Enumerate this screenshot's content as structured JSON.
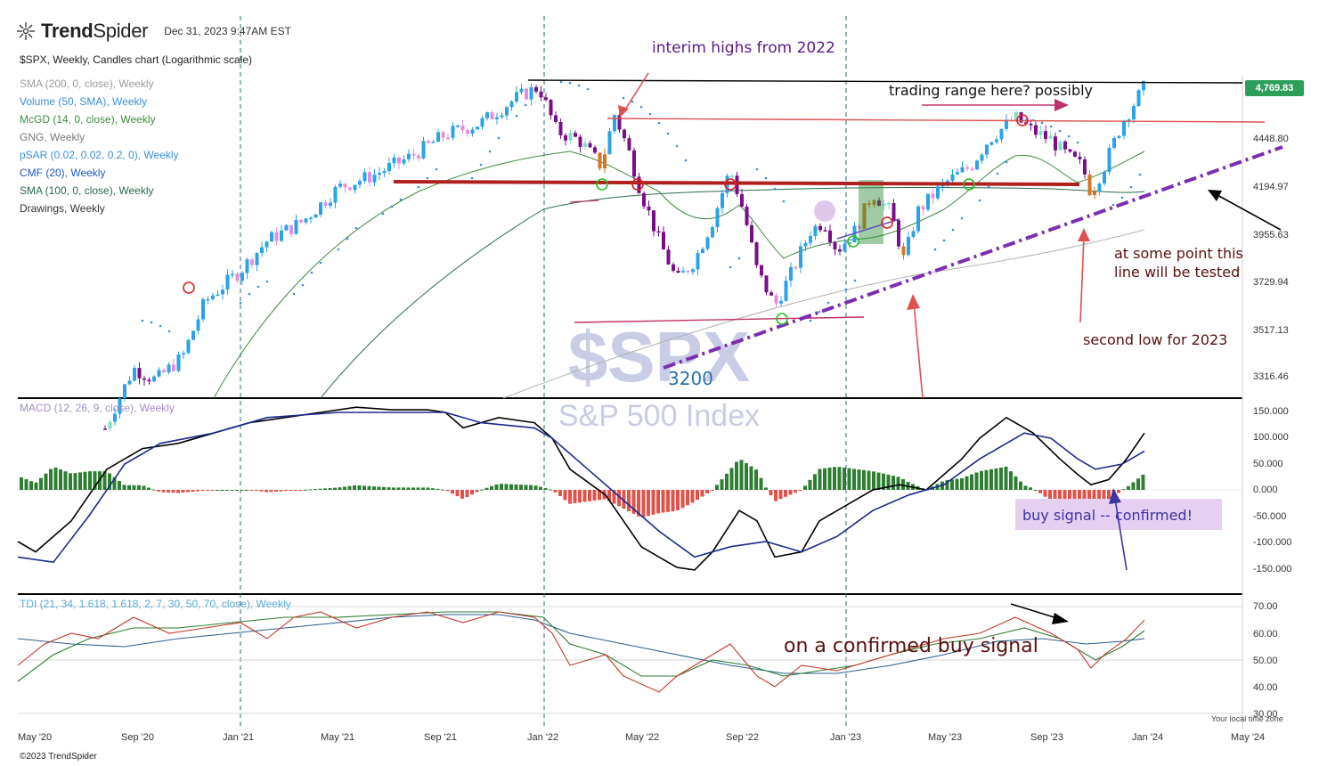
{
  "header": {
    "brand_bold": "Trend",
    "brand_light": "Spider",
    "datetime": "Dec 31, 2023 9:47AM EST",
    "symbol_line": "$SPX, Weekly, Candles chart (Logarithmic scale)"
  },
  "indicators": [
    {
      "label": "SMA (200, 0, close), Weekly",
      "color": "#9a9a9a"
    },
    {
      "label": "Volume (50, SMA), Weekly",
      "color": "#3b8fd6"
    },
    {
      "label": "McGD (14, 0, close), Weekly",
      "color": "#3f8a3f"
    },
    {
      "label": "GNG, Weekly",
      "color": "#7a7a7a"
    },
    {
      "label": "pSAR (0.02, 0.02, 0.2, 0), Weekly",
      "color": "#3b8fd6"
    },
    {
      "label": "CMF (20), Weekly",
      "color": "#1f58c4"
    },
    {
      "label": "SMA (100, 0, close), Weekly",
      "color": "#2b6a4a"
    },
    {
      "label": "Drawings, Weekly",
      "color": "#333333"
    }
  ],
  "price_axis": [
    "4448.80",
    "4194.97",
    "3955.63",
    "3729.94",
    "3517.13",
    "3316.46"
  ],
  "last_price": "4,769.83",
  "macd_panel": {
    "label": "MACD (12, 26, 9, close), Weekly",
    "axis": [
      "150.000",
      "100.000",
      "50.000",
      "0.000",
      "-50.000",
      "-100.000",
      "-150.000"
    ]
  },
  "tdi_panel": {
    "label": "TDI (21, 34, 1.618, 1.618, 2, 7, 30, 50, 70, close), Weekly",
    "axis": [
      "70.00",
      "60.00",
      "50.00",
      "40.00",
      "30.00"
    ]
  },
  "time_axis": [
    "May '20",
    "Sep '20",
    "Jan '21",
    "May '21",
    "Sep '21",
    "Jan '22",
    "May '22",
    "Sep '22",
    "Jan '23",
    "May '23",
    "Sep '23",
    "Jan '24",
    "May '24"
  ],
  "watermark": {
    "symbol": "$SPX",
    "name": "S&P 500 Index"
  },
  "annotations": {
    "interim_highs": "interim highs from 2022",
    "trading_range": "trading range here? possibly",
    "line_tested_1": "at some point this",
    "line_tested_2": "line will be tested",
    "second_low": "second low for 2023",
    "level_3200": "3200",
    "buy_signal": "buy signal -- confirmed!",
    "confirmed_buy": "on a confirmed buy signal"
  },
  "local_time": "Your local time zone",
  "footer": "©2023 TrendSpider",
  "colors": {
    "candle_up_strong": "#2aa3e8",
    "candle_up_weak": "#7fe0c8",
    "candle_down_weak": "#e58ce0",
    "candle_down_strong": "#7a0e8a",
    "candle_orange": "#d9741f",
    "sma200": "#b0b0b0",
    "sma100": "#2b6a4a",
    "mcgd": "#3f8a3f",
    "resistance": "#b02020",
    "trendline": "#7b2fb0",
    "macd_line": "#000000",
    "signal_line": "#1b2a8a",
    "hist_pos": "#2e7d32",
    "hist_neg": "#e0524a",
    "tdi_red": "#c0392b",
    "tdi_green": "#2e7d32",
    "tdi_blue": "#2a5f8f"
  },
  "chart_data": [
    {
      "type": "candlestick",
      "title": "$SPX, Weekly, Candles chart (Logarithmic scale)",
      "scale": "log",
      "x_range": [
        "May 2020",
        "May 2024"
      ],
      "ylim": [
        3200,
        4800
      ],
      "series": [
        {
          "name": "$SPX",
          "x": [
            "Jun 2020",
            "Oct 2020",
            "Jan 2021",
            "May 2021",
            "Sep 2021",
            "Jan 2022",
            "Apr 2022",
            "Jun 2022",
            "Aug 2022",
            "Oct 2022",
            "Dec 2022",
            "Feb 2023",
            "Jul 2023",
            "Oct 2023",
            "Dec 2023"
          ],
          "close": [
            3100,
            3400,
            3750,
            4200,
            4450,
            4770,
            4400,
            3700,
            4280,
            3580,
            3850,
            4100,
            4550,
            4120,
            4770
          ]
        }
      ],
      "reference_levels": [
        {
          "price": 4800,
          "kind": "horizontal"
        },
        {
          "price": 4600,
          "kind": "horizontal"
        },
        {
          "price": 4200,
          "kind": "horizontal"
        },
        {
          "price": 3600,
          "kind": "horizontal"
        }
      ]
    },
    {
      "type": "line",
      "title": "MACD (12, 26, 9, close), Weekly",
      "ylim": [
        -160,
        160
      ],
      "x": [
        "Jun 2020",
        "Oct 2020",
        "Jan 2021",
        "May 2021",
        "Sep 2021",
        "Jan 2022",
        "Apr 2022",
        "Jun 2022",
        "Aug 2022",
        "Oct 2022",
        "Dec 2022",
        "Feb 2023",
        "Jul 2023",
        "Oct 2023",
        "Dec 2023"
      ],
      "series": [
        {
          "name": "MACD",
          "values": [
            -90,
            80,
            120,
            160,
            150,
            130,
            -60,
            -150,
            -80,
            -140,
            -40,
            10,
            140,
            10,
            110
          ]
        },
        {
          "name": "Signal",
          "values": [
            -120,
            40,
            110,
            150,
            150,
            120,
            -20,
            -120,
            -110,
            -110,
            -60,
            -10,
            110,
            40,
            70
          ]
        }
      ]
    },
    {
      "type": "line",
      "title": "TDI (21, 34, 1.618, 1.618, 2, 7, 30, 50, 70, close), Weekly",
      "ylim": [
        30,
        70
      ],
      "x": [
        "Jun 2020",
        "Oct 2020",
        "Jan 2021",
        "May 2021",
        "Sep 2021",
        "Jan 2022",
        "Apr 2022",
        "Jun 2022",
        "Aug 2022",
        "Oct 2022",
        "Dec 2022",
        "Feb 2023",
        "Jul 2023",
        "Oct 2023",
        "Dec 2023"
      ],
      "series": [
        {
          "name": "RSI",
          "values": [
            50,
            62,
            60,
            68,
            67,
            64,
            48,
            40,
            52,
            42,
            48,
            52,
            64,
            46,
            64
          ]
        },
        {
          "name": "Signal",
          "values": [
            45,
            58,
            62,
            66,
            68,
            66,
            52,
            43,
            48,
            44,
            46,
            50,
            61,
            50,
            60
          ]
        },
        {
          "name": "Market Base",
          "values": [
            58,
            55,
            60,
            63,
            66,
            64,
            55,
            48,
            46,
            45,
            46,
            50,
            58,
            56,
            58
          ]
        }
      ]
    }
  ]
}
